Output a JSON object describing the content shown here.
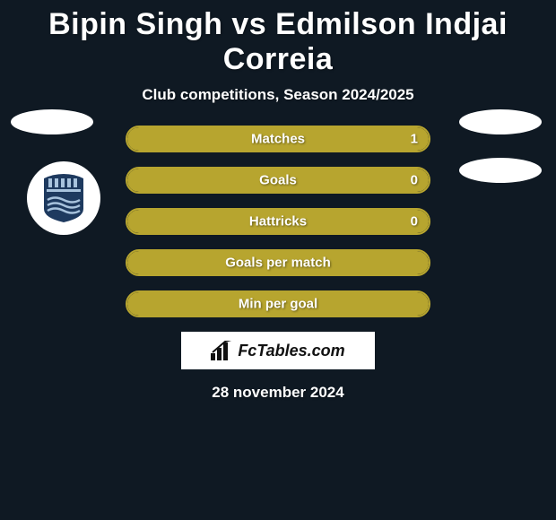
{
  "header": {
    "title": "Bipin Singh vs Edmilson Indjai Correia",
    "subtitle": "Club competitions, Season 2024/2025"
  },
  "stats": {
    "rows": [
      {
        "label": "Matches",
        "value": "1",
        "fill_pct": 100,
        "show_value": true
      },
      {
        "label": "Goals",
        "value": "0",
        "fill_pct": 100,
        "show_value": true
      },
      {
        "label": "Hattricks",
        "value": "0",
        "fill_pct": 100,
        "show_value": true
      },
      {
        "label": "Goals per match",
        "value": "",
        "fill_pct": 100,
        "show_value": false
      },
      {
        "label": "Min per goal",
        "value": "",
        "fill_pct": 100,
        "show_value": false
      }
    ],
    "bar_fill_color": "#b7a52f",
    "bar_border_color": "#b7a52f",
    "bar_bg_color": "#0f1923"
  },
  "branding": {
    "fctables_label": "FcTables.com"
  },
  "footer": {
    "date": "28 november 2024"
  },
  "theme": {
    "page_bg": "#0f1923",
    "text_color": "#ffffff",
    "title_fontsize": 34,
    "subtitle_fontsize": 17,
    "stat_label_fontsize": 15
  },
  "decor": {
    "left_ellipses": 1,
    "right_ellipses": 2,
    "badge_team": "Mumbai City FC",
    "badge_primary": "#1e3a5f",
    "badge_stripe": "#a8c3dd"
  }
}
